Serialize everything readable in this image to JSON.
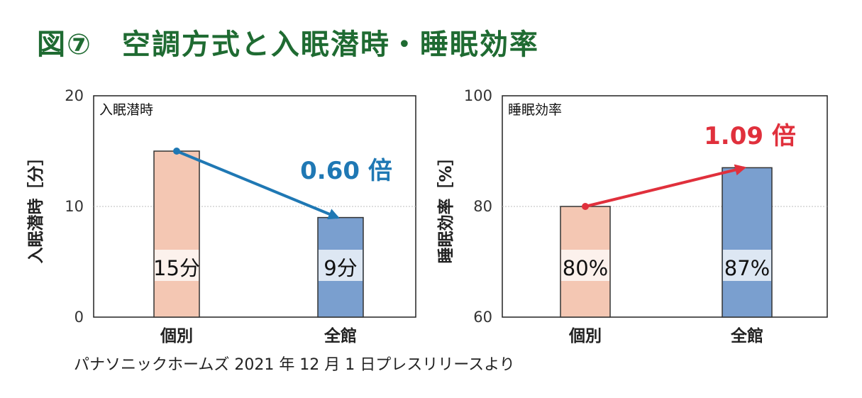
{
  "figure": {
    "number": "図⑦",
    "title": "空調方式と入眠潜時・睡眠効率",
    "source": "パナソニックホームズ 2021 年 12 月 1 日プレスリリースより"
  },
  "chart_data": [
    {
      "type": "bar",
      "panel_label": "入眠潜時",
      "ylabel": "入眠潜時［分］",
      "categories": [
        "個別",
        "全館"
      ],
      "values": [
        15,
        9
      ],
      "value_labels": [
        "15分",
        "9分"
      ],
      "ylim": [
        0,
        20
      ],
      "yticks": [
        0,
        10,
        20
      ],
      "gridline": 10,
      "bar_colors": [
        "#f4c7b3",
        "#7a9fcf"
      ],
      "arrow": {
        "label": "0.60 倍",
        "color": "#1f78b4",
        "from": 15,
        "to": 9
      }
    },
    {
      "type": "bar",
      "panel_label": "睡眠効率",
      "ylabel": "睡眠効率［%］",
      "categories": [
        "個別",
        "全館"
      ],
      "values": [
        80,
        87
      ],
      "value_labels": [
        "80%",
        "87%"
      ],
      "ylim": [
        60,
        100
      ],
      "yticks": [
        60,
        80,
        100
      ],
      "gridline": 80,
      "bar_colors": [
        "#f4c7b3",
        "#7a9fcf"
      ],
      "arrow": {
        "label": "1.09 倍",
        "color": "#e0303c",
        "from": 80,
        "to": 87
      }
    }
  ]
}
